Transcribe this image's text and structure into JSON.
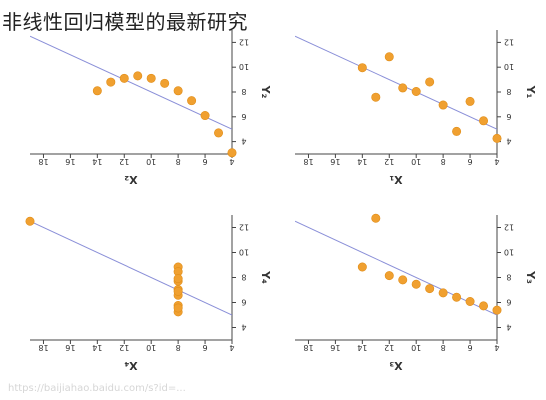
{
  "title": "非线性回归模型的最新研究",
  "watermark": "https://baijiahao.baidu.com/s?id=...",
  "colors": {
    "point": "#f0a030",
    "line": "#8a8fd8",
    "axis": "#444444",
    "text": "#333333"
  },
  "chart_data": [
    {
      "type": "scatter",
      "xlabel": "X₂",
      "ylabel": "Y₂",
      "xticks": [
        18,
        16,
        14,
        12,
        10,
        8,
        6,
        4
      ],
      "yticks": [
        4,
        6,
        8,
        10,
        12
      ],
      "x": [
        14,
        13,
        12,
        11,
        10,
        9,
        8,
        7,
        6,
        5,
        4
      ],
      "y": [
        8.1,
        8.8,
        9.1,
        9.3,
        9.1,
        8.7,
        8.1,
        7.3,
        6.1,
        4.7,
        3.1
      ],
      "fit": {
        "slope": 0.5,
        "intercept": 3.0
      },
      "xlim": [
        4,
        19
      ],
      "ylim": [
        3,
        13
      ]
    },
    {
      "type": "scatter",
      "xlabel": "X₁",
      "ylabel": "Y₁",
      "xticks": [
        18,
        16,
        14,
        12,
        10,
        8,
        6,
        4
      ],
      "yticks": [
        4,
        6,
        8,
        10,
        12
      ],
      "x": [
        14,
        13,
        12,
        11,
        10,
        9,
        8,
        7,
        6,
        5,
        4
      ],
      "y": [
        9.96,
        7.58,
        10.84,
        8.33,
        8.04,
        8.81,
        6.95,
        4.82,
        7.24,
        5.68,
        4.26
      ],
      "fit": {
        "slope": 0.5,
        "intercept": 3.0
      },
      "xlim": [
        4,
        19
      ],
      "ylim": [
        3,
        13
      ]
    },
    {
      "type": "scatter",
      "xlabel": "X₄",
      "ylabel": "Y₄",
      "xticks": [
        18,
        16,
        14,
        12,
        10,
        8,
        6,
        4
      ],
      "yticks": [
        4,
        6,
        8,
        10,
        12
      ],
      "x": [
        19,
        8,
        8,
        8,
        8,
        8,
        8,
        8,
        8,
        8,
        8
      ],
      "y": [
        12.5,
        6.58,
        5.76,
        7.71,
        8.84,
        8.47,
        7.04,
        5.25,
        5.56,
        7.91,
        6.89
      ],
      "fit": {
        "slope": 0.5,
        "intercept": 3.0
      },
      "xlim": [
        4,
        19
      ],
      "ylim": [
        3,
        13
      ]
    },
    {
      "type": "scatter",
      "xlabel": "X₃",
      "ylabel": "Y₃",
      "xticks": [
        18,
        16,
        14,
        12,
        10,
        8,
        6,
        4
      ],
      "yticks": [
        4,
        6,
        8,
        10,
        12
      ],
      "x": [
        13,
        14,
        12,
        11,
        10,
        9,
        8,
        7,
        6,
        5,
        4
      ],
      "y": [
        12.74,
        8.84,
        8.15,
        7.81,
        7.46,
        7.11,
        6.77,
        6.42,
        6.08,
        5.73,
        5.39
      ],
      "fit": {
        "slope": 0.5,
        "intercept": 3.0
      },
      "xlim": [
        4,
        19
      ],
      "ylim": [
        3,
        13
      ]
    }
  ]
}
